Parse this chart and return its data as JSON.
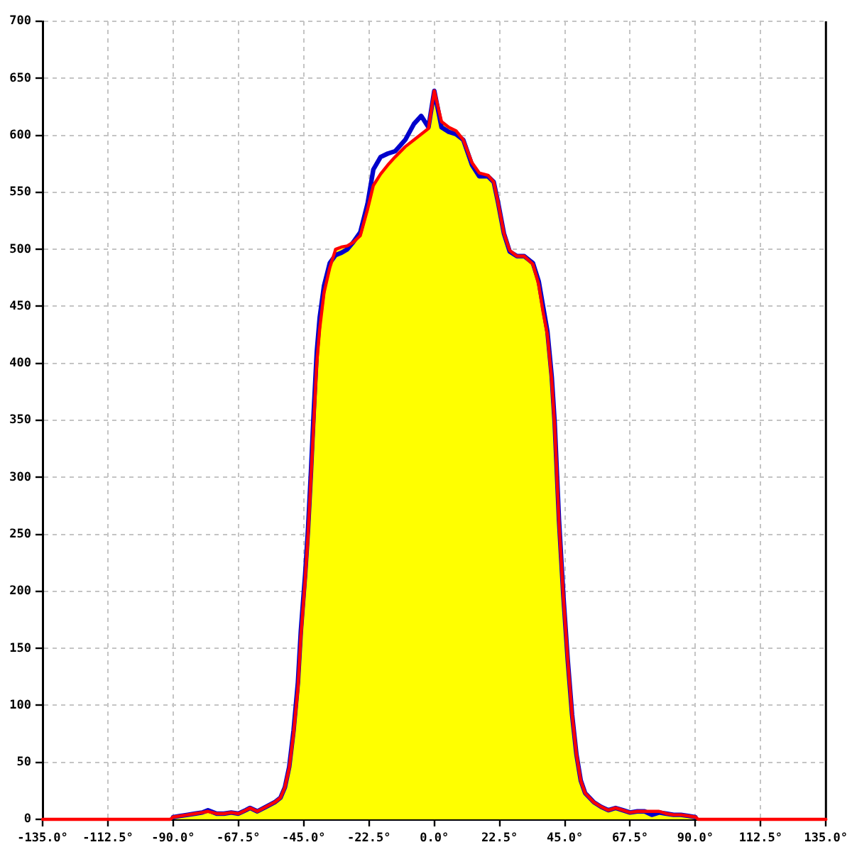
{
  "chart_data": {
    "type": "line",
    "x": [
      -90,
      -87.5,
      -85,
      -82.5,
      -80,
      -78,
      -75,
      -72.5,
      -70,
      -67.5,
      -65,
      -63.5,
      -61,
      -58,
      -55,
      -53,
      -51.5,
      -50,
      -48.5,
      -47,
      -46,
      -44.5,
      -43.5,
      -42.5,
      -41.5,
      -40.5,
      -39.5,
      -38,
      -36,
      -34,
      -32,
      -30,
      -28,
      -25.5,
      -23,
      -21,
      -18.5,
      -16,
      -13.5,
      -10,
      -7,
      -4.5,
      -2,
      0,
      2.5,
      5,
      7.5,
      10,
      13,
      15.5,
      18.5,
      20.5,
      22,
      24,
      26,
      28.5,
      31,
      34,
      36,
      37.5,
      39,
      40.5,
      41.5,
      43,
      44.5,
      46,
      47.5,
      49,
      50.5,
      52,
      55,
      57.5,
      60,
      62.5,
      65,
      67.5,
      70,
      72.5,
      75,
      77.5,
      80,
      82.5,
      85,
      87.5,
      90
    ],
    "xlim": [
      -135,
      135
    ],
    "xticks": [
      {
        "value": -135,
        "label": "-135.0°"
      },
      {
        "value": -112.5,
        "label": "-112.5°"
      },
      {
        "value": -90,
        "label": "-90.0°"
      },
      {
        "value": -67.5,
        "label": "-67.5°"
      },
      {
        "value": -45,
        "label": "-45.0°"
      },
      {
        "value": -22.5,
        "label": "-22.5°"
      },
      {
        "value": 0,
        "label": "0.0°"
      },
      {
        "value": 22.5,
        "label": "22.5°"
      },
      {
        "value": 45,
        "label": "45.0°"
      },
      {
        "value": 67.5,
        "label": "67.5°"
      },
      {
        "value": 90,
        "label": "90.0°"
      },
      {
        "value": 112.5,
        "label": "112.5°"
      },
      {
        "value": 135,
        "label": "135.0°"
      }
    ],
    "ylim": [
      0,
      700
    ],
    "yticks": [
      0,
      50,
      100,
      150,
      200,
      250,
      300,
      350,
      400,
      450,
      500,
      550,
      600,
      650,
      700
    ],
    "grid": true,
    "marker": "none",
    "line_style": "solid",
    "series": [
      {
        "type": "area",
        "color": "#ffff00",
        "values": [
          2,
          3,
          4,
          5,
          6,
          7,
          5,
          5,
          6,
          5,
          8,
          10,
          7,
          11,
          15,
          19,
          28,
          45,
          75,
          115,
          160,
          210,
          250,
          300,
          350,
          400,
          430,
          462,
          484,
          500,
          502,
          503,
          506,
          512,
          535,
          556,
          566,
          574,
          581,
          590,
          596,
          601,
          606,
          639,
          612,
          607,
          604,
          596,
          576,
          567,
          565,
          559,
          541,
          514,
          499,
          494,
          494,
          487,
          469,
          445,
          425,
          385,
          345,
          260,
          195,
          140,
          92,
          57,
          34,
          23,
          15,
          11,
          8,
          10,
          8,
          6,
          7,
          7,
          7,
          7,
          5,
          4,
          4,
          3,
          2
        ]
      },
      {
        "color": "#0000cc",
        "values": [
          2,
          3,
          4,
          5,
          6,
          8,
          5,
          5,
          6,
          5,
          8,
          10,
          7,
          11,
          15,
          19,
          28,
          46,
          78,
          120,
          165,
          215,
          255,
          305,
          360,
          410,
          440,
          468,
          488,
          495,
          497,
          500,
          506,
          515,
          540,
          570,
          581,
          584,
          586,
          596,
          610,
          617,
          607,
          639,
          607,
          603,
          601,
          596,
          574,
          564,
          564,
          559,
          541,
          514,
          498,
          494,
          494,
          488,
          472,
          450,
          428,
          388,
          348,
          262,
          196,
          140,
          92,
          57,
          34,
          23,
          15,
          11,
          8,
          10,
          8,
          6,
          7,
          7,
          4,
          6,
          5,
          4,
          4,
          3,
          2
        ]
      },
      {
        "color": "#ff0000",
        "x": [
          -135,
          -91,
          -90,
          -87.5,
          -85,
          -82.5,
          -80,
          -78,
          -75,
          -72.5,
          -70,
          -67.5,
          -65,
          -63.5,
          -61,
          -58,
          -55,
          -53,
          -51.5,
          -50,
          -48.5,
          -47,
          -46,
          -44.5,
          -43.5,
          -42.5,
          -41.5,
          -40.5,
          -39.5,
          -38,
          -36,
          -34,
          -32,
          -30,
          -28,
          -25.5,
          -23,
          -21,
          -18.5,
          -16,
          -13.5,
          -10,
          -7,
          -4.5,
          -2,
          0,
          2.5,
          5,
          7.5,
          10,
          13,
          15.5,
          18.5,
          20.5,
          22,
          24,
          26,
          28.5,
          31,
          34,
          36,
          37.5,
          39,
          40.5,
          41.5,
          43,
          44.5,
          46,
          47.5,
          49,
          50.5,
          52,
          55,
          57.5,
          60,
          62.5,
          65,
          67.5,
          70,
          72.5,
          75,
          77.5,
          80,
          82.5,
          85,
          87.5,
          90,
          91,
          135
        ],
        "values": [
          0,
          0,
          2,
          3,
          4,
          5,
          6,
          7,
          5,
          5,
          6,
          5,
          8,
          10,
          7,
          11,
          15,
          19,
          28,
          45,
          75,
          115,
          160,
          210,
          250,
          300,
          350,
          400,
          430,
          462,
          484,
          500,
          502,
          503,
          506,
          512,
          535,
          556,
          566,
          574,
          581,
          590,
          596,
          601,
          606,
          639,
          612,
          607,
          604,
          596,
          576,
          567,
          565,
          559,
          541,
          514,
          499,
          494,
          494,
          487,
          469,
          445,
          425,
          385,
          345,
          260,
          195,
          140,
          92,
          57,
          34,
          23,
          15,
          11,
          8,
          10,
          8,
          6,
          7,
          7,
          7,
          7,
          5,
          4,
          4,
          3,
          2,
          0,
          0
        ]
      }
    ]
  }
}
